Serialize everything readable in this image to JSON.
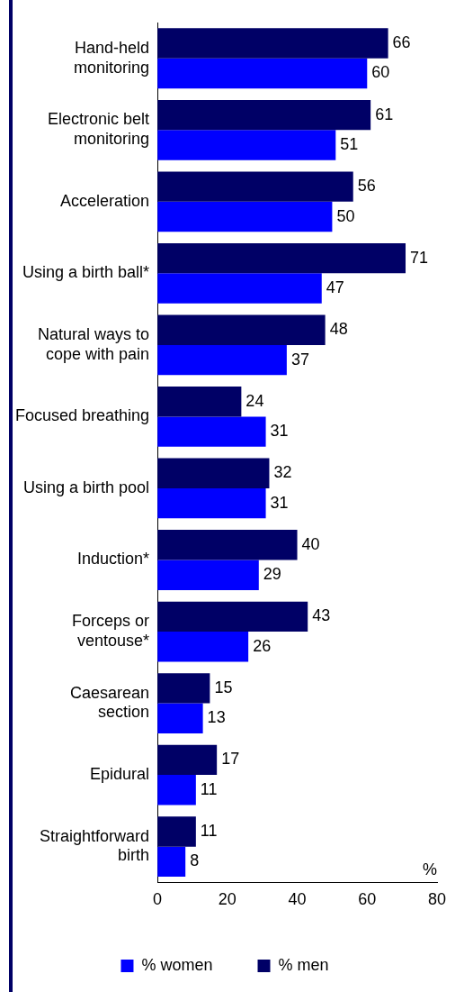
{
  "chart_data": {
    "type": "bar",
    "orientation": "horizontal",
    "xlabel": "%",
    "categories": [
      "Hand-held monitoring",
      "Electronic belt monitoring",
      "Acceleration",
      "Using a birth ball*",
      "Natural ways to cope with pain",
      "Focused breathing",
      "Using a birth pool",
      "Induction*",
      "Forceps or ventouse*",
      "Caesarean section",
      "Epidural",
      "Straightforward birth"
    ],
    "series": [
      {
        "name": "% men",
        "color": "#000066",
        "values": [
          66,
          61,
          56,
          71,
          48,
          24,
          32,
          40,
          43,
          15,
          17,
          11
        ]
      },
      {
        "name": "% women",
        "color": "#0000ff",
        "values": [
          60,
          51,
          50,
          47,
          37,
          31,
          31,
          29,
          26,
          13,
          11,
          8
        ]
      }
    ],
    "xlim": [
      0,
      80
    ],
    "xticks": [
      0,
      20,
      40,
      60,
      80
    ],
    "grid": false,
    "legend": "bottom",
    "data_labels": true
  }
}
